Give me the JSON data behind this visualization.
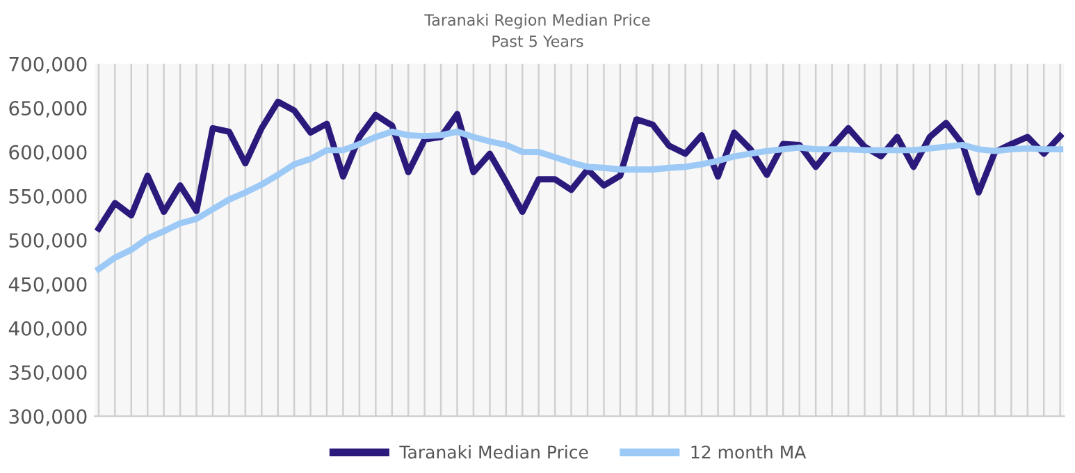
{
  "chart_data": {
    "type": "line",
    "title": "Taranaki Region Median Price",
    "subtitle": "Past 5 Years",
    "categories": [
      null,
      null,
      null,
      null,
      null,
      null,
      null,
      null,
      null,
      null,
      null,
      null,
      null,
      null,
      null,
      null,
      null,
      null,
      null,
      null,
      null,
      null,
      null,
      null,
      null,
      null,
      null,
      null,
      null,
      null,
      null,
      null,
      null,
      null,
      null,
      null,
      null,
      null,
      null,
      null,
      null,
      null,
      null,
      null,
      null,
      null,
      null,
      null,
      null,
      null,
      null,
      null,
      null,
      null,
      null,
      null,
      null,
      null,
      null,
      null
    ],
    "series": [
      {
        "name": "Taranaki Median Price",
        "color": "#2b1a7c",
        "values": [
          513000,
          542000,
          528000,
          573000,
          532000,
          562000,
          533000,
          627000,
          623000,
          587000,
          627000,
          657000,
          647000,
          622000,
          632000,
          572000,
          617000,
          642000,
          630000,
          577000,
          614000,
          617000,
          643000,
          577000,
          598000,
          566000,
          532000,
          569000,
          569000,
          557000,
          580000,
          562000,
          573000,
          637000,
          631000,
          607000,
          598000,
          619000,
          572000,
          622000,
          603000,
          574000,
          609000,
          608000,
          583000,
          606000,
          627000,
          606000,
          595000,
          617000,
          583000,
          617000,
          633000,
          609000,
          554000,
          600000,
          609000,
          617000,
          598000,
          618000
        ]
      },
      {
        "name": "12 month MA",
        "color": "#9cc9f6",
        "values": [
          467000,
          480000,
          489000,
          502000,
          510000,
          519000,
          524000,
          535000,
          546000,
          554000,
          563000,
          574000,
          586000,
          592000,
          602000,
          602000,
          609000,
          617000,
          623000,
          619000,
          618000,
          619000,
          623000,
          617000,
          612000,
          608000,
          600000,
          600000,
          594000,
          588000,
          583000,
          582000,
          580000,
          580000,
          580000,
          582000,
          583000,
          586000,
          590000,
          595000,
          598000,
          601000,
          603000,
          605000,
          603000,
          603000,
          603000,
          602000,
          602000,
          602000,
          602000,
          604000,
          606000,
          608000,
          603000,
          601000,
          603000,
          604000,
          603000,
          603000
        ]
      }
    ],
    "ylim": [
      300000,
      700000
    ],
    "yticks": [
      {
        "value": 300000,
        "label": "300,000"
      },
      {
        "value": 350000,
        "label": "350,000"
      },
      {
        "value": 400000,
        "label": "400,000"
      },
      {
        "value": 450000,
        "label": "450,000"
      },
      {
        "value": 500000,
        "label": "500,000"
      },
      {
        "value": 550000,
        "label": "550,000"
      },
      {
        "value": 600000,
        "label": "600,000"
      },
      {
        "value": 650000,
        "label": "650,000"
      },
      {
        "value": 700000,
        "label": "700,000"
      }
    ],
    "grid": "x",
    "legend": "bottom",
    "line_style": "solid",
    "marker": "none"
  }
}
